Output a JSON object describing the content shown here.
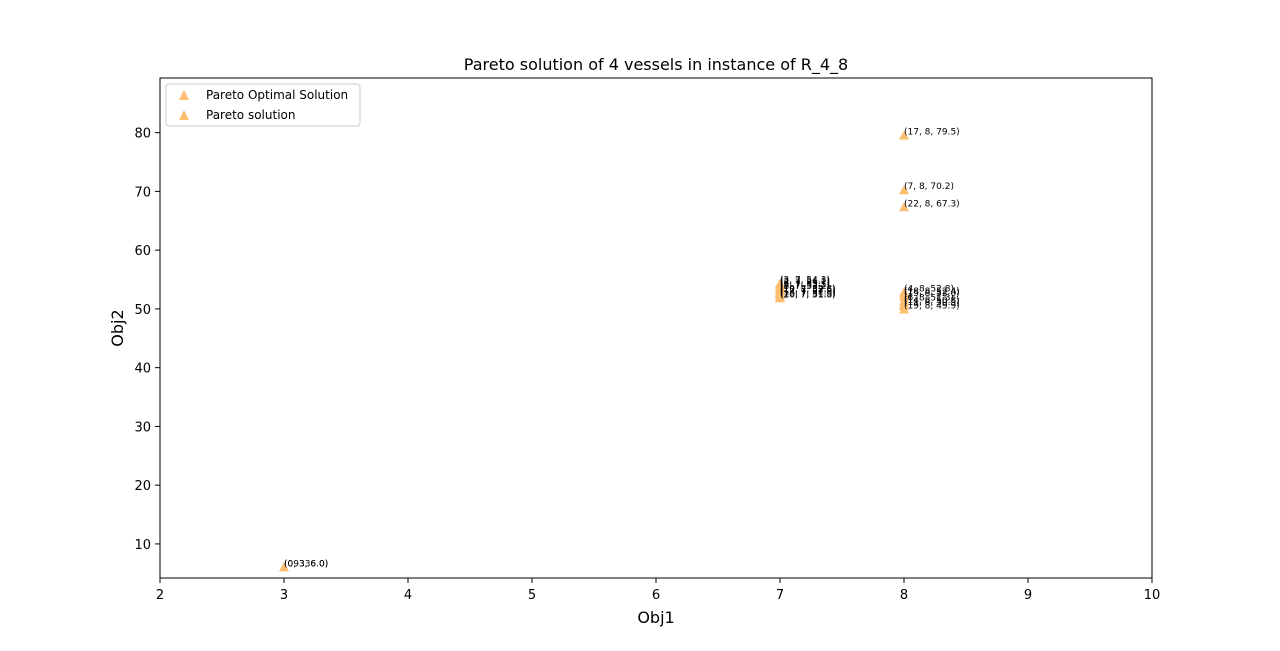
{
  "chart_data": {
    "type": "scatter",
    "title": "Pareto solution of 4 vessels in instance of R_4_8",
    "xlabel": "Obj1",
    "ylabel": "Obj2",
    "xlim": [
      2,
      10
    ],
    "ylim": [
      4.2,
      89.3
    ],
    "xticks": [
      2,
      3,
      4,
      5,
      6,
      7,
      8,
      9,
      10
    ],
    "yticks": [
      10,
      20,
      30,
      40,
      50,
      60,
      70,
      80
    ],
    "grid": false,
    "legend_position": "top-left",
    "marker_color": "#fdbf6f",
    "legend": [
      "Pareto Optimal Solution",
      "Pareto solution"
    ],
    "series": [
      {
        "name": "Pareto Optimal Solution",
        "points": [
          {
            "x": 3,
            "y": 6.0,
            "label": "(09336.0)"
          },
          {
            "x": 8,
            "y": 79.5,
            "label": "(17, 8, 79.5)"
          },
          {
            "x": 8,
            "y": 70.2,
            "label": "(7, 8, 70.2)"
          },
          {
            "x": 8,
            "y": 67.3,
            "label": "(22, 8, 67.3)"
          },
          {
            "x": 8,
            "y": 52.8,
            "label": "(4, 8, 52.8)"
          },
          {
            "x": 8,
            "y": 52.0,
            "label": "(15, 8, 52.0)"
          },
          {
            "x": 8,
            "y": 51.3,
            "label": "(6, 8, 51.3)"
          },
          {
            "x": 8,
            "y": 50.5,
            "label": "(11, 8, 50.5)"
          },
          {
            "x": 8,
            "y": 49.9,
            "label": "(19, 8, 49.9)"
          },
          {
            "x": 7,
            "y": 54.1,
            "label": "(2, 7, 54.1)"
          },
          {
            "x": 7,
            "y": 53.7,
            "label": "(5, 7, 53.7)"
          },
          {
            "x": 7,
            "y": 53.2,
            "label": "(8, 7, 53.2)"
          },
          {
            "x": 7,
            "y": 52.8,
            "label": "(10, 7, 52.8)"
          },
          {
            "x": 7,
            "y": 52.3,
            "label": "(13, 7, 52.3)"
          },
          {
            "x": 7,
            "y": 51.9,
            "label": "(16, 7, 51.9)"
          }
        ]
      },
      {
        "name": "Pareto solution",
        "points": [
          {
            "x": 3,
            "y": 6.0,
            "label": "(0, 3, 6.0)"
          },
          {
            "x": 7,
            "y": 54.3,
            "label": "(3, 7, 54.3)"
          },
          {
            "x": 7,
            "y": 53.5,
            "label": "(9, 7, 53.5)"
          },
          {
            "x": 7,
            "y": 52.6,
            "label": "(12, 7, 52.6)"
          },
          {
            "x": 7,
            "y": 51.8,
            "label": "(20, 7, 51.8)"
          },
          {
            "x": 8,
            "y": 52.4,
            "label": "(18, 8, 52.4)"
          },
          {
            "x": 8,
            "y": 50.8,
            "label": "(14, 8, 50.8)"
          }
        ]
      }
    ]
  }
}
